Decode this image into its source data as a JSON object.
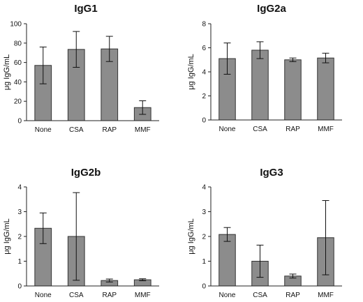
{
  "figure": {
    "bar_color": "#8c8c8c",
    "chart_data": [
      {
        "type": "bar",
        "title": "IgG1",
        "ylabel": "μg IgG/mL",
        "categories": [
          "None",
          "CSA",
          "RAP",
          "MMF"
        ],
        "values": [
          57,
          73.5,
          74,
          13.5
        ],
        "error": [
          19,
          18.5,
          13,
          7
        ],
        "ylim": [
          0,
          100
        ],
        "yticks": [
          0,
          20,
          40,
          60,
          80,
          100
        ]
      },
      {
        "type": "bar",
        "title": "IgG2a",
        "ylabel": "μg IgG/mL",
        "categories": [
          "None",
          "CSA",
          "RAP",
          "MMF"
        ],
        "values": [
          5.1,
          5.8,
          5.0,
          5.15
        ],
        "error": [
          1.3,
          0.7,
          0.15,
          0.4
        ],
        "ylim": [
          0,
          8
        ],
        "yticks": [
          0,
          2,
          4,
          6,
          8
        ]
      },
      {
        "type": "bar",
        "title": "IgG2b",
        "ylabel": "μg IgG/mL",
        "categories": [
          "None",
          "CSA",
          "RAP",
          "MMF"
        ],
        "values": [
          2.33,
          2.0,
          0.22,
          0.25
        ],
        "error": [
          0.62,
          1.77,
          0.06,
          0.04
        ],
        "ylim": [
          0,
          4
        ],
        "yticks": [
          0,
          1,
          2,
          3,
          4
        ]
      },
      {
        "type": "bar",
        "title": "IgG3",
        "ylabel": "μg IgG/mL",
        "categories": [
          "None",
          "CSA",
          "RAP",
          "MMF"
        ],
        "values": [
          2.08,
          1.0,
          0.4,
          1.95
        ],
        "error": [
          0.28,
          0.65,
          0.08,
          1.5
        ],
        "ylim": [
          0,
          4
        ],
        "yticks": [
          0,
          1,
          2,
          3,
          4
        ]
      }
    ]
  }
}
